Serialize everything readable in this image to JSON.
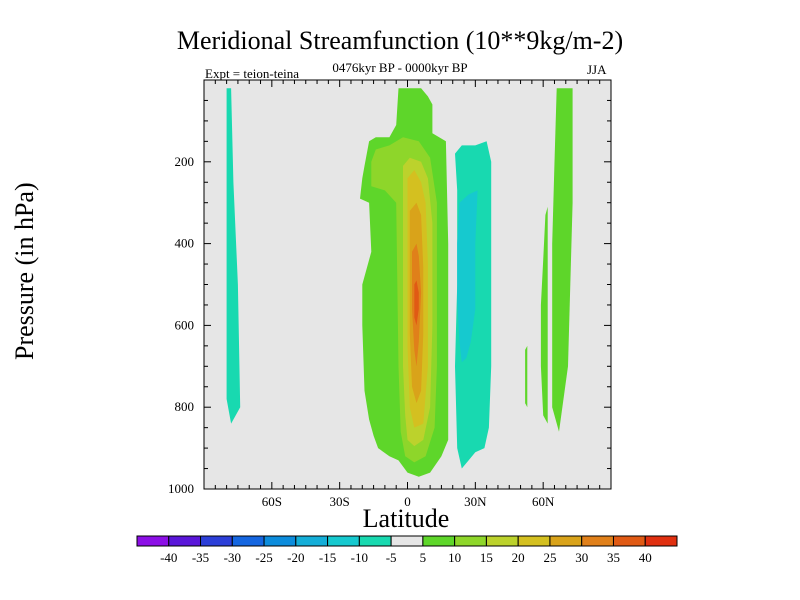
{
  "chart_data": {
    "type": "filled-contour",
    "title": "Meridional Streamfunction (10**9kg/m-2)",
    "subtitle": "0476kyr BP - 0000kyr BP",
    "experiment": "Expt = teion-teina",
    "season": "JJA",
    "xlabel": "Latitude",
    "ylabel": "Pressure (in hPa)",
    "x_range": [
      -90,
      90
    ],
    "y_range": [
      0,
      1000
    ],
    "y_inverted": true,
    "x_ticks": [
      {
        "value": -60,
        "label": "60S"
      },
      {
        "value": -30,
        "label": "30S"
      },
      {
        "value": 0,
        "label": "0"
      },
      {
        "value": 30,
        "label": "30N"
      },
      {
        "value": 60,
        "label": "60N"
      }
    ],
    "y_ticks": [
      {
        "value": 200,
        "label": "200"
      },
      {
        "value": 400,
        "label": "400"
      },
      {
        "value": 600,
        "label": "600"
      },
      {
        "value": 800,
        "label": "800"
      },
      {
        "value": 1000,
        "label": "1000"
      }
    ],
    "background_level": "0 (between -5 and 5)",
    "colorbar": {
      "levels": [
        -40,
        -35,
        -30,
        -25,
        -20,
        -15,
        -10,
        -5,
        5,
        10,
        15,
        20,
        25,
        30,
        35,
        40
      ],
      "colors": [
        "#8c0fe6",
        "#5a16d9",
        "#2c3fd8",
        "#1566e0",
        "#0c8cdc",
        "#14aed8",
        "#16c9cf",
        "#18d9b0",
        "#e6e6e6",
        "#5ed62a",
        "#8ed62a",
        "#bcd22c",
        "#d4c020",
        "#d9a31a",
        "#e0801a",
        "#e05a14",
        "#e03010"
      ]
    },
    "regions": [
      {
        "name": "sh-polar-cell",
        "level": -5,
        "color": "#18d9b0",
        "points": [
          [
            -80,
            20
          ],
          [
            -78,
            20
          ],
          [
            -77,
            250
          ],
          [
            -75,
            500
          ],
          [
            -74,
            800
          ],
          [
            -76,
            820
          ],
          [
            -78,
            840
          ],
          [
            -80,
            780
          ]
        ]
      },
      {
        "name": "hadley-outer",
        "level": 5,
        "color": "#5ed62a",
        "points": [
          [
            -19,
            210
          ],
          [
            -17,
            150
          ],
          [
            -14,
            140
          ],
          [
            -8,
            140
          ],
          [
            -5,
            110
          ],
          [
            -4,
            20
          ],
          [
            6,
            20
          ],
          [
            9,
            40
          ],
          [
            11,
            60
          ],
          [
            11,
            130
          ],
          [
            17,
            150
          ],
          [
            18,
            400
          ],
          [
            18,
            800
          ],
          [
            18,
            880
          ],
          [
            15,
            920
          ],
          [
            10,
            960
          ],
          [
            5,
            970
          ],
          [
            0,
            960
          ],
          [
            -4,
            930
          ],
          [
            -8,
            920
          ],
          [
            -13,
            900
          ],
          [
            -15,
            870
          ],
          [
            -17,
            830
          ],
          [
            -19,
            760
          ],
          [
            -20,
            600
          ],
          [
            -20,
            500
          ],
          [
            -16,
            420
          ],
          [
            -17,
            300
          ],
          [
            -21,
            290
          ],
          [
            -20,
            240
          ]
        ]
      },
      {
        "name": "hadley-10",
        "level": 10,
        "color": "#8ed62a",
        "points": [
          [
            -16,
            200
          ],
          [
            -14,
            170
          ],
          [
            -8,
            160
          ],
          [
            -2,
            140
          ],
          [
            5,
            150
          ],
          [
            10,
            190
          ],
          [
            13,
            300
          ],
          [
            13,
            500
          ],
          [
            13,
            700
          ],
          [
            12,
            850
          ],
          [
            8,
            920
          ],
          [
            3,
            935
          ],
          [
            -1,
            920
          ],
          [
            -3,
            860
          ],
          [
            -4,
            700
          ],
          [
            -5,
            300
          ],
          [
            -10,
            270
          ],
          [
            -16,
            260
          ]
        ]
      },
      {
        "name": "hadley-15",
        "level": 15,
        "color": "#bcd22c",
        "points": [
          [
            -2,
            210
          ],
          [
            1,
            190
          ],
          [
            6,
            200
          ],
          [
            9,
            240
          ],
          [
            11,
            350
          ],
          [
            11,
            600
          ],
          [
            10,
            800
          ],
          [
            7,
            880
          ],
          [
            3,
            895
          ],
          [
            0,
            880
          ],
          [
            -1,
            820
          ],
          [
            -2,
            700
          ],
          [
            -2,
            400
          ]
        ]
      },
      {
        "name": "hadley-20",
        "level": 20,
        "color": "#d4c020",
        "points": [
          [
            0,
            240
          ],
          [
            3,
            220
          ],
          [
            6,
            250
          ],
          [
            8,
            300
          ],
          [
            9,
            450
          ],
          [
            9,
            700
          ],
          [
            7,
            840
          ],
          [
            3,
            850
          ],
          [
            1,
            800
          ],
          [
            0,
            650
          ],
          [
            0,
            400
          ]
        ]
      },
      {
        "name": "hadley-25",
        "level": 25,
        "color": "#d9a31a",
        "points": [
          [
            1,
            320
          ],
          [
            4,
            300
          ],
          [
            6,
            330
          ],
          [
            7,
            460
          ],
          [
            7,
            620
          ],
          [
            6,
            760
          ],
          [
            4,
            790
          ],
          [
            2,
            750
          ],
          [
            1,
            620
          ],
          [
            1,
            450
          ]
        ]
      },
      {
        "name": "hadley-30",
        "level": 30,
        "color": "#e0801a",
        "points": [
          [
            2,
            420
          ],
          [
            4,
            400
          ],
          [
            5,
            430
          ],
          [
            6,
            520
          ],
          [
            5,
            640
          ],
          [
            4,
            700
          ],
          [
            3,
            660
          ],
          [
            2,
            560
          ]
        ]
      },
      {
        "name": "hadley-35",
        "level": 35,
        "color": "#e05a14",
        "points": [
          [
            3,
            500
          ],
          [
            4,
            490
          ],
          [
            5,
            520
          ],
          [
            5,
            560
          ],
          [
            4,
            600
          ],
          [
            3,
            580
          ]
        ]
      },
      {
        "name": "nh-cell-outer",
        "level": -5,
        "color": "#18d9b0",
        "points": [
          [
            22,
            270
          ],
          [
            21,
            180
          ],
          [
            24,
            160
          ],
          [
            30,
            160
          ],
          [
            35,
            150
          ],
          [
            37,
            200
          ],
          [
            37,
            500
          ],
          [
            37,
            700
          ],
          [
            36,
            850
          ],
          [
            34,
            900
          ],
          [
            30,
            910
          ],
          [
            27,
            930
          ],
          [
            24,
            950
          ],
          [
            22,
            900
          ],
          [
            21,
            700
          ],
          [
            22,
            500
          ]
        ]
      },
      {
        "name": "nh-cell-inner",
        "level": -10,
        "color": "#16c9cf",
        "points": [
          [
            22,
            400
          ],
          [
            23,
            300
          ],
          [
            27,
            280
          ],
          [
            31,
            270
          ],
          [
            30,
            400
          ],
          [
            30,
            560
          ],
          [
            28,
            640
          ],
          [
            26,
            680
          ],
          [
            24,
            690
          ],
          [
            23,
            640
          ],
          [
            22,
            540
          ]
        ]
      },
      {
        "name": "nh-strip-a",
        "level": 5,
        "color": "#5ed62a",
        "points": [
          [
            52,
            660
          ],
          [
            53,
            650
          ],
          [
            53,
            800
          ],
          [
            52,
            790
          ]
        ]
      },
      {
        "name": "nh-strip-b",
        "level": 5,
        "color": "#5ed62a",
        "points": [
          [
            60,
            440
          ],
          [
            61,
            330
          ],
          [
            62,
            310
          ],
          [
            62,
            600
          ],
          [
            62,
            840
          ],
          [
            60,
            820
          ],
          [
            59,
            700
          ],
          [
            59,
            550
          ]
        ]
      },
      {
        "name": "nh-strip-c",
        "level": 5,
        "color": "#5ed62a",
        "points": [
          [
            66,
            20
          ],
          [
            73,
            20
          ],
          [
            73,
            300
          ],
          [
            71,
            700
          ],
          [
            67,
            860
          ],
          [
            64,
            800
          ],
          [
            64,
            400
          ],
          [
            65,
            200
          ]
        ]
      }
    ]
  }
}
